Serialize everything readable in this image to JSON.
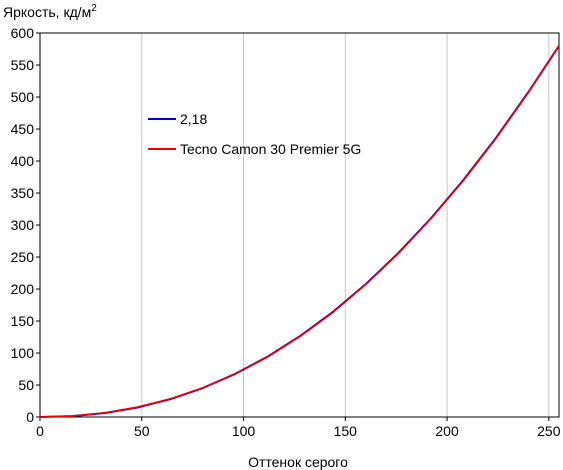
{
  "chart_data": {
    "type": "line",
    "title": "",
    "ylabel_main": "Яркость, кд/м",
    "ylabel_sup": "2",
    "xlabel": "Оттенок серого",
    "xlim": [
      0,
      255
    ],
    "ylim": [
      0,
      600
    ],
    "xticks": [
      0,
      50,
      100,
      150,
      200,
      250
    ],
    "yticks": [
      0,
      50,
      100,
      150,
      200,
      250,
      300,
      350,
      400,
      450,
      500,
      550,
      600
    ],
    "grid": "vertical",
    "legend_position": "upper-left",
    "series": [
      {
        "name": "2,18",
        "color": "#0000cc",
        "x": [
          0,
          16,
          32,
          48,
          64,
          80,
          96,
          112,
          128,
          144,
          160,
          176,
          192,
          208,
          224,
          240,
          255
        ],
        "y": [
          0,
          1.3,
          6.2,
          14.9,
          27.9,
          45.3,
          67.5,
          94.6,
          126.9,
          164.4,
          207.4,
          255.9,
          310.1,
          370.1,
          436.0,
          507.8,
          580.0
        ]
      },
      {
        "name": "Tecno Camon 30 Premier 5G",
        "color": "#ee0000",
        "x": [
          0,
          16,
          32,
          48,
          64,
          80,
          96,
          112,
          128,
          144,
          160,
          176,
          192,
          208,
          224,
          240,
          255
        ],
        "y": [
          0,
          1.4,
          6.5,
          15.5,
          28.2,
          45.6,
          67.3,
          94.0,
          126.4,
          163.6,
          207.0,
          255.3,
          309.6,
          369.3,
          435.2,
          507.1,
          580.0
        ]
      }
    ]
  }
}
